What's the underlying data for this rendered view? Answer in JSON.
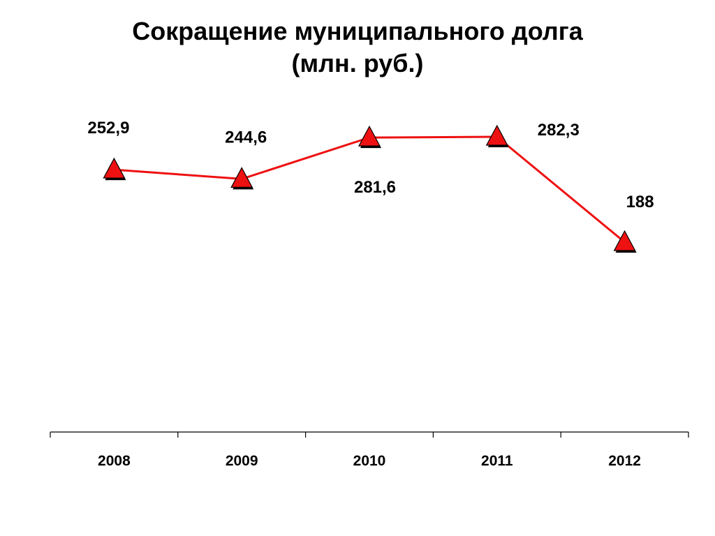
{
  "chart_data": {
    "type": "line",
    "title": "Сокращение муниципального долга",
    "subtitle": "(млн. руб.)",
    "categories": [
      "2008",
      "2009",
      "2010",
      "2011",
      "2012"
    ],
    "series": [
      {
        "values": [
          252.9,
          244.6,
          281.6,
          282.3,
          188
        ],
        "data_labels": [
          "252,9",
          "244,6",
          "281,6",
          "282,3",
          "188"
        ],
        "color": "#ee1111",
        "marker": "triangle"
      }
    ],
    "xlabel": "",
    "ylabel": "",
    "grid": false,
    "legend": "none"
  }
}
